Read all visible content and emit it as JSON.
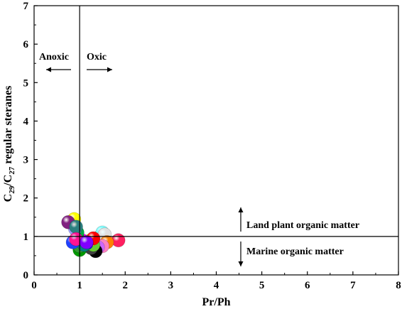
{
  "chart_data": {
    "type": "scatter",
    "xlabel": "Pr/Ph",
    "ylabel": "C29/C27 regular steranes",
    "ylabel_parts": {
      "c1": "C",
      "s1": "29",
      "slash": "/C",
      "s2": "27",
      "rest": " regular steranes"
    },
    "xlim": [
      0,
      8
    ],
    "ylim": [
      0,
      7
    ],
    "xticks": [
      "0",
      "1",
      "2",
      "3",
      "4",
      "5",
      "6",
      "7",
      "8"
    ],
    "yticks": [
      "0",
      "1",
      "2",
      "3",
      "4",
      "5",
      "6",
      "7"
    ],
    "grid": false,
    "reference_lines": {
      "x": 1,
      "y": 1
    },
    "annotations": {
      "anoxic": "Anoxic",
      "oxic": "Oxic",
      "land_plant": "Land plant organic matter",
      "marine": "Marine organic matter"
    },
    "points": [
      {
        "x": 1.45,
        "y": 1.0,
        "color": "#c0c0c0"
      },
      {
        "x": 1.5,
        "y": 1.1,
        "color": "#7fffff"
      },
      {
        "x": 1.55,
        "y": 1.05,
        "color": "#e0e0e0"
      },
      {
        "x": 1.85,
        "y": 0.9,
        "color": "#ff2060"
      },
      {
        "x": 1.6,
        "y": 0.85,
        "color": "#ff8000"
      },
      {
        "x": 1.5,
        "y": 0.75,
        "color": "#ff80c0"
      },
      {
        "x": 1.4,
        "y": 0.72,
        "color": "#cc66ff"
      },
      {
        "x": 1.35,
        "y": 0.62,
        "color": "#000000"
      },
      {
        "x": 1.25,
        "y": 0.7,
        "color": "#404040"
      },
      {
        "x": 1.3,
        "y": 0.78,
        "color": "#66cc33"
      },
      {
        "x": 1.2,
        "y": 0.88,
        "color": "#ffff00"
      },
      {
        "x": 1.3,
        "y": 0.95,
        "color": "#ff0000"
      },
      {
        "x": 1.15,
        "y": 0.82,
        "color": "#0000ff"
      },
      {
        "x": 1.05,
        "y": 0.9,
        "color": "#ff00ff"
      },
      {
        "x": 1.0,
        "y": 0.65,
        "color": "#009900"
      },
      {
        "x": 1.0,
        "y": 0.75,
        "color": "#339933"
      },
      {
        "x": 1.1,
        "y": 0.78,
        "color": "#008080"
      },
      {
        "x": 0.95,
        "y": 0.98,
        "color": "#4b8a2a"
      },
      {
        "x": 0.95,
        "y": 1.1,
        "color": "#00aa44"
      },
      {
        "x": 0.9,
        "y": 1.2,
        "color": "#a0a0ff"
      },
      {
        "x": 0.88,
        "y": 1.45,
        "color": "#ffff00"
      },
      {
        "x": 0.75,
        "y": 1.37,
        "color": "#802080"
      },
      {
        "x": 0.92,
        "y": 1.25,
        "color": "#2b8080"
      },
      {
        "x": 0.85,
        "y": 0.85,
        "color": "#2040ff"
      },
      {
        "x": 0.92,
        "y": 0.93,
        "color": "#ff1493"
      },
      {
        "x": 1.15,
        "y": 0.85,
        "color": "#8000ff"
      }
    ]
  }
}
